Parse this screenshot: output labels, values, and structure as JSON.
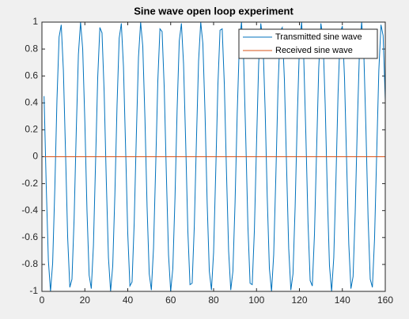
{
  "chart_data": {
    "type": "line",
    "title": "Sine wave open loop experiment",
    "x": [
      1,
      2,
      3,
      4,
      5,
      6,
      7,
      8,
      9,
      10,
      11,
      12,
      13,
      14,
      15,
      16,
      17,
      18,
      19,
      20,
      21,
      22,
      23,
      24,
      25,
      26,
      27,
      28,
      29,
      30,
      31,
      32,
      33,
      34,
      35,
      36,
      37,
      38,
      39,
      40,
      41,
      42,
      43,
      44,
      45,
      46,
      47,
      48,
      49,
      50,
      51,
      52,
      53,
      54,
      55,
      56,
      57,
      58,
      59,
      60,
      61,
      62,
      63,
      64,
      65,
      66,
      67,
      68,
      69,
      70,
      71,
      72,
      73,
      74,
      75,
      76,
      77,
      78,
      79,
      80,
      81,
      82,
      83,
      84,
      85,
      86,
      87,
      88,
      89,
      90,
      91,
      92,
      93,
      94,
      95,
      96,
      97,
      98,
      99,
      100,
      101,
      102,
      103,
      104,
      105,
      106,
      107,
      108,
      109,
      110,
      111,
      112,
      113,
      114,
      115,
      116,
      117,
      118,
      119,
      120,
      121,
      122,
      123,
      124,
      125,
      126,
      127,
      128,
      129,
      130,
      131,
      132,
      133,
      134,
      135,
      136,
      137,
      138,
      139,
      140,
      141,
      142,
      143,
      144,
      145,
      146,
      147,
      148,
      149,
      150,
      151,
      152,
      153,
      154,
      155,
      156,
      157,
      158,
      159,
      160
    ],
    "series": [
      {
        "name": "Transmitted sine wave",
        "color": "#0072bd",
        "values": [
          0.45,
          -0.21,
          -0.77,
          -1.0,
          -0.79,
          -0.24,
          0.42,
          0.89,
          0.98,
          0.64,
          0.03,
          -0.6,
          -0.97,
          -0.91,
          -0.46,
          0.19,
          0.76,
          1.0,
          0.8,
          0.26,
          -0.4,
          -0.88,
          -0.98,
          -0.66,
          -0.04,
          0.59,
          0.96,
          0.92,
          0.48,
          -0.18,
          -0.75,
          -1.0,
          -0.81,
          -0.28,
          0.38,
          0.88,
          0.99,
          0.67,
          0.06,
          -0.57,
          -0.96,
          -0.93,
          -0.49,
          0.16,
          0.74,
          1.0,
          0.82,
          0.29,
          -0.37,
          -0.87,
          -0.99,
          -0.68,
          -0.08,
          0.56,
          0.95,
          0.93,
          0.51,
          -0.14,
          -0.73,
          -1.0,
          -0.83,
          -0.31,
          0.35,
          0.86,
          0.99,
          0.69,
          0.1,
          -0.55,
          -0.95,
          -0.94,
          -0.52,
          0.12,
          0.71,
          1.0,
          0.84,
          0.33,
          -0.34,
          -0.85,
          -0.99,
          -0.71,
          -0.11,
          0.53,
          0.94,
          0.95,
          0.54,
          -0.11,
          -0.7,
          -0.99,
          -0.85,
          -0.34,
          0.32,
          0.84,
          1.0,
          0.72,
          0.13,
          -0.52,
          -0.94,
          -0.95,
          -0.55,
          0.09,
          0.69,
          0.99,
          0.86,
          0.36,
          -0.3,
          -0.83,
          -1.0,
          -0.73,
          -0.15,
          0.5,
          0.93,
          0.96,
          0.57,
          -0.07,
          -0.68,
          -0.99,
          -0.87,
          -0.37,
          0.29,
          0.82,
          1.0,
          0.74,
          0.16,
          -0.49,
          -0.92,
          -0.96,
          -0.58,
          0.05,
          0.66,
          0.99,
          0.88,
          0.39,
          -0.27,
          -0.81,
          -1.0,
          -0.75,
          -0.18,
          0.47,
          0.92,
          0.97,
          0.59,
          -0.04,
          -0.65,
          -0.98,
          -0.89,
          -0.41,
          0.25,
          0.8,
          1.0,
          0.77,
          0.2,
          -0.46,
          -0.91,
          -0.97,
          -0.61,
          0.02,
          0.64,
          0.98,
          0.9,
          0.42
        ]
      },
      {
        "name": "Received sine wave",
        "color": "#d95319",
        "values": [
          0,
          0,
          0,
          0,
          0,
          0,
          0,
          0,
          0,
          0,
          0,
          0,
          0,
          0,
          0,
          0,
          0,
          0,
          0,
          0,
          0,
          0,
          0,
          0,
          0,
          0,
          0,
          0,
          0,
          0,
          0,
          0,
          0,
          0,
          0,
          0,
          0,
          0,
          0,
          0,
          0,
          0,
          0,
          0,
          0,
          0,
          0,
          0,
          0,
          0,
          0,
          0,
          0,
          0,
          0,
          0,
          0,
          0,
          0,
          0,
          0,
          0,
          0,
          0,
          0,
          0,
          0,
          0,
          0,
          0,
          0,
          0,
          0,
          0,
          0,
          0,
          0,
          0,
          0,
          0,
          0,
          0,
          0,
          0,
          0,
          0,
          0,
          0,
          0,
          0,
          0,
          0,
          0,
          0,
          0,
          0,
          0,
          0,
          0,
          0,
          0,
          0,
          0,
          0,
          0,
          0,
          0,
          0,
          0,
          0,
          0,
          0,
          0,
          0,
          0,
          0,
          0,
          0,
          0,
          0,
          0,
          0,
          0,
          0,
          0,
          0,
          0,
          0,
          0,
          0,
          0,
          0,
          0,
          0,
          0,
          0,
          0,
          0,
          0,
          0,
          0,
          0,
          0,
          0,
          0,
          0,
          0,
          0,
          0,
          0,
          0,
          0,
          0,
          0,
          0,
          0,
          0,
          0,
          0,
          0
        ]
      }
    ],
    "xlim": [
      0,
      160
    ],
    "xticks": [
      0,
      20,
      40,
      60,
      80,
      100,
      120,
      140,
      160
    ],
    "ylim": [
      -1,
      1
    ],
    "yticks": [
      -1,
      -0.8,
      -0.6,
      -0.4,
      -0.2,
      0,
      0.2,
      0.4,
      0.6,
      0.8,
      1
    ],
    "legend": "upper right"
  }
}
